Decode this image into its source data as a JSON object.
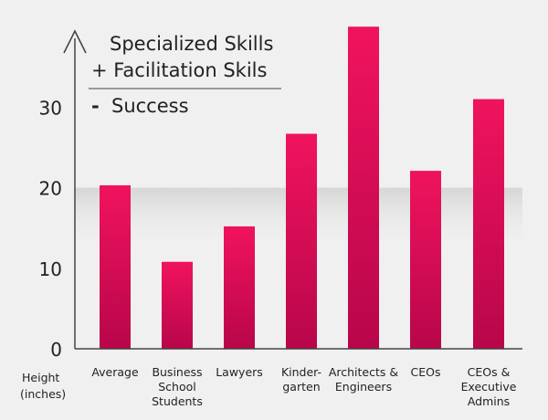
{
  "chart_data": {
    "type": "bar",
    "categories": [
      [
        "Average"
      ],
      [
        "Business",
        "School",
        "Students"
      ],
      [
        "Lawyers"
      ],
      [
        "Kinder-",
        "garten"
      ],
      [
        "Architects &",
        "Engineers"
      ],
      [
        "CEOs"
      ],
      [
        "CEOs &",
        "Executive",
        "Admins"
      ]
    ],
    "values": [
      20.3,
      10.8,
      15.2,
      26.7,
      40.0,
      22.1,
      31.0
    ],
    "ylim": [
      0,
      40
    ],
    "yticks": [
      0,
      10,
      20,
      30
    ],
    "ylabel_lines": [
      "Height",
      "(inches)"
    ],
    "title_lines": [
      "Specialized Skills",
      "+ Facilitation Skils"
    ],
    "title_result": "Success",
    "title_result_sign": "-",
    "grid": false,
    "highlight_band_at": 20,
    "colors": {
      "bar_top": "#f0135e",
      "bar_bottom": "#b8064a",
      "axis": "#444444",
      "text": "#222222",
      "background": "#f0f0f0",
      "band": "#d6d6d6"
    }
  }
}
